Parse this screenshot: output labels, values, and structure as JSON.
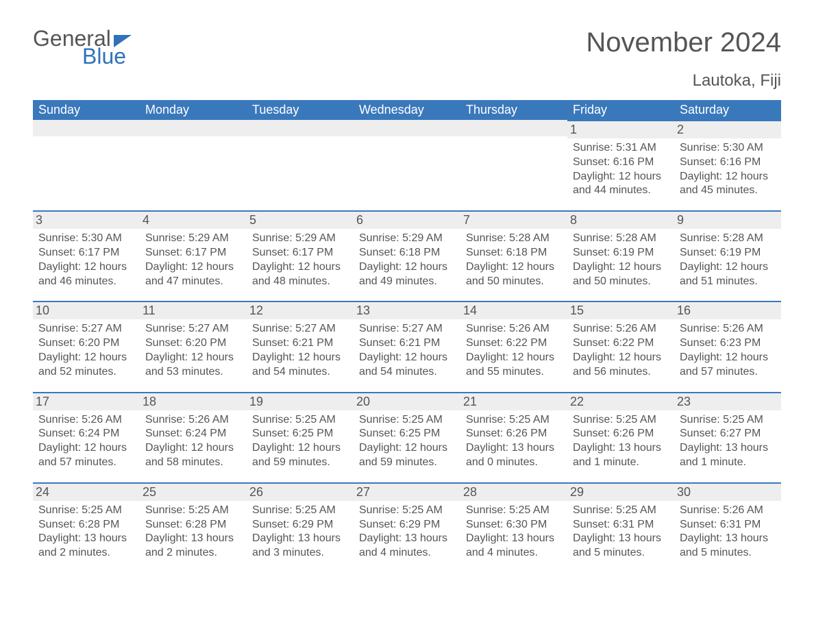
{
  "brand": {
    "part1": "General",
    "part2": "Blue",
    "color_blue": "#2f72b8",
    "color_gray": "#555555"
  },
  "title": "November 2024",
  "subtitle": "Lautoka, Fiji",
  "styling": {
    "header_bg": "#3a78bc",
    "header_text": "#ffffff",
    "daynum_bg": "#eeeeee",
    "daynum_border": "#3a78bc",
    "body_text": "#555555",
    "title_fontsize": 40,
    "subtitle_fontsize": 24,
    "header_fontsize": 18,
    "daynum_fontsize": 18,
    "details_fontsize": 16
  },
  "weekdays": [
    "Sunday",
    "Monday",
    "Tuesday",
    "Wednesday",
    "Thursday",
    "Friday",
    "Saturday"
  ],
  "leading_blanks": 5,
  "days": [
    {
      "n": 1,
      "sunrise": "5:31 AM",
      "sunset": "6:16 PM",
      "daylight": "12 hours and 44 minutes."
    },
    {
      "n": 2,
      "sunrise": "5:30 AM",
      "sunset": "6:16 PM",
      "daylight": "12 hours and 45 minutes."
    },
    {
      "n": 3,
      "sunrise": "5:30 AM",
      "sunset": "6:17 PM",
      "daylight": "12 hours and 46 minutes."
    },
    {
      "n": 4,
      "sunrise": "5:29 AM",
      "sunset": "6:17 PM",
      "daylight": "12 hours and 47 minutes."
    },
    {
      "n": 5,
      "sunrise": "5:29 AM",
      "sunset": "6:17 PM",
      "daylight": "12 hours and 48 minutes."
    },
    {
      "n": 6,
      "sunrise": "5:29 AM",
      "sunset": "6:18 PM",
      "daylight": "12 hours and 49 minutes."
    },
    {
      "n": 7,
      "sunrise": "5:28 AM",
      "sunset": "6:18 PM",
      "daylight": "12 hours and 50 minutes."
    },
    {
      "n": 8,
      "sunrise": "5:28 AM",
      "sunset": "6:19 PM",
      "daylight": "12 hours and 50 minutes."
    },
    {
      "n": 9,
      "sunrise": "5:28 AM",
      "sunset": "6:19 PM",
      "daylight": "12 hours and 51 minutes."
    },
    {
      "n": 10,
      "sunrise": "5:27 AM",
      "sunset": "6:20 PM",
      "daylight": "12 hours and 52 minutes."
    },
    {
      "n": 11,
      "sunrise": "5:27 AM",
      "sunset": "6:20 PM",
      "daylight": "12 hours and 53 minutes."
    },
    {
      "n": 12,
      "sunrise": "5:27 AM",
      "sunset": "6:21 PM",
      "daylight": "12 hours and 54 minutes."
    },
    {
      "n": 13,
      "sunrise": "5:27 AM",
      "sunset": "6:21 PM",
      "daylight": "12 hours and 54 minutes."
    },
    {
      "n": 14,
      "sunrise": "5:26 AM",
      "sunset": "6:22 PM",
      "daylight": "12 hours and 55 minutes."
    },
    {
      "n": 15,
      "sunrise": "5:26 AM",
      "sunset": "6:22 PM",
      "daylight": "12 hours and 56 minutes."
    },
    {
      "n": 16,
      "sunrise": "5:26 AM",
      "sunset": "6:23 PM",
      "daylight": "12 hours and 57 minutes."
    },
    {
      "n": 17,
      "sunrise": "5:26 AM",
      "sunset": "6:24 PM",
      "daylight": "12 hours and 57 minutes."
    },
    {
      "n": 18,
      "sunrise": "5:26 AM",
      "sunset": "6:24 PM",
      "daylight": "12 hours and 58 minutes."
    },
    {
      "n": 19,
      "sunrise": "5:25 AM",
      "sunset": "6:25 PM",
      "daylight": "12 hours and 59 minutes."
    },
    {
      "n": 20,
      "sunrise": "5:25 AM",
      "sunset": "6:25 PM",
      "daylight": "12 hours and 59 minutes."
    },
    {
      "n": 21,
      "sunrise": "5:25 AM",
      "sunset": "6:26 PM",
      "daylight": "13 hours and 0 minutes."
    },
    {
      "n": 22,
      "sunrise": "5:25 AM",
      "sunset": "6:26 PM",
      "daylight": "13 hours and 1 minute."
    },
    {
      "n": 23,
      "sunrise": "5:25 AM",
      "sunset": "6:27 PM",
      "daylight": "13 hours and 1 minute."
    },
    {
      "n": 24,
      "sunrise": "5:25 AM",
      "sunset": "6:28 PM",
      "daylight": "13 hours and 2 minutes."
    },
    {
      "n": 25,
      "sunrise": "5:25 AM",
      "sunset": "6:28 PM",
      "daylight": "13 hours and 2 minutes."
    },
    {
      "n": 26,
      "sunrise": "5:25 AM",
      "sunset": "6:29 PM",
      "daylight": "13 hours and 3 minutes."
    },
    {
      "n": 27,
      "sunrise": "5:25 AM",
      "sunset": "6:29 PM",
      "daylight": "13 hours and 4 minutes."
    },
    {
      "n": 28,
      "sunrise": "5:25 AM",
      "sunset": "6:30 PM",
      "daylight": "13 hours and 4 minutes."
    },
    {
      "n": 29,
      "sunrise": "5:25 AM",
      "sunset": "6:31 PM",
      "daylight": "13 hours and 5 minutes."
    },
    {
      "n": 30,
      "sunrise": "5:26 AM",
      "sunset": "6:31 PM",
      "daylight": "13 hours and 5 minutes."
    }
  ],
  "labels": {
    "sunrise": "Sunrise: ",
    "sunset": "Sunset: ",
    "daylight": "Daylight: "
  }
}
